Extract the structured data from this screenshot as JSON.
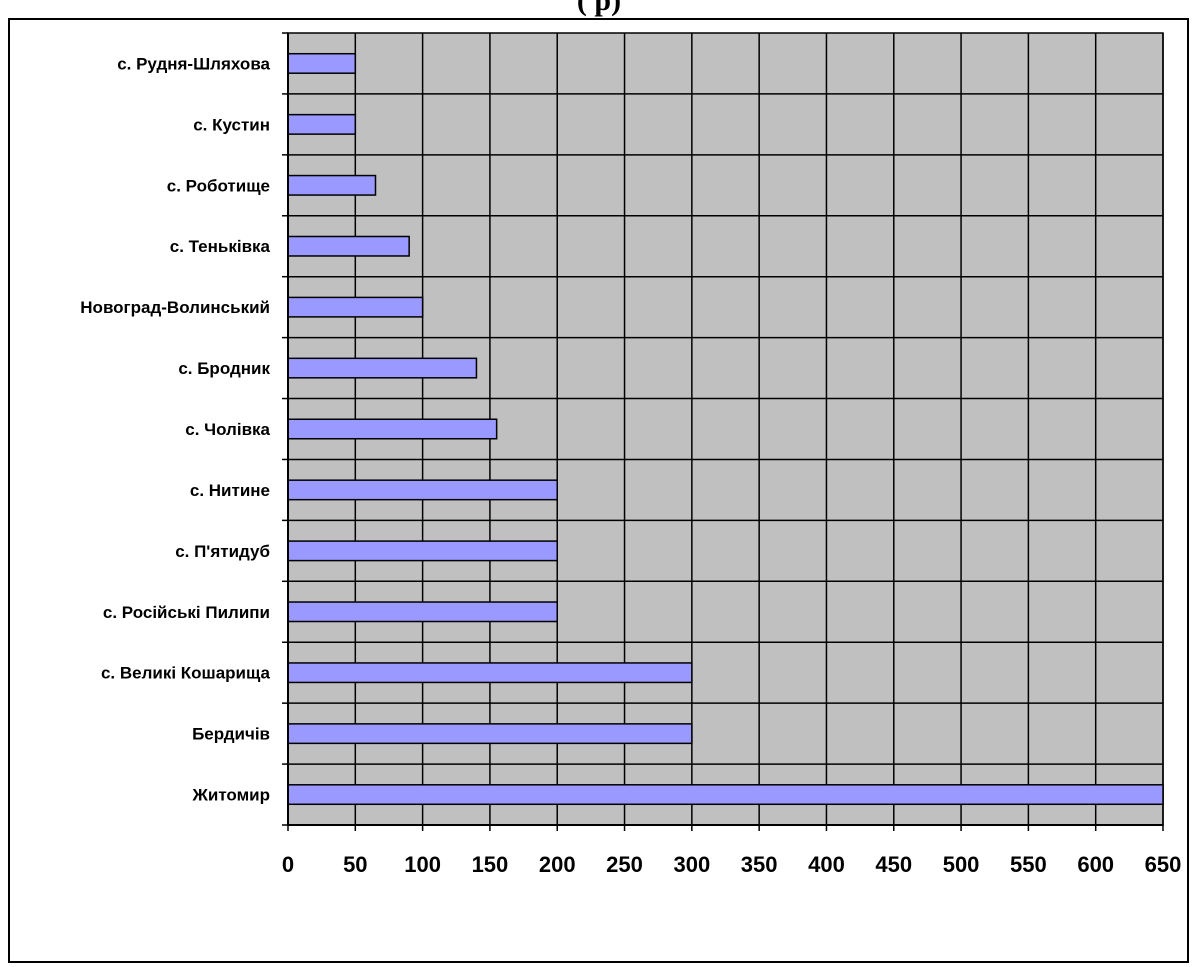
{
  "chart_data": {
    "type": "bar",
    "orientation": "horizontal",
    "title": "(                              р)",
    "categories": [
      "с. Рудня-Шляхова",
      "с. Кустин",
      "с. Роботище",
      "с. Теньківка",
      "Новоград-Волинський",
      "с. Бродник",
      "с. Чолівка",
      "с. Нитине",
      "с. П'ятидуб",
      "с. Російські Пилипи",
      "с. Великі Кошарища",
      "Бердичів",
      "Житомир"
    ],
    "values": [
      50,
      50,
      65,
      90,
      100,
      140,
      155,
      200,
      200,
      200,
      300,
      300,
      650
    ],
    "xlim": [
      0,
      650
    ],
    "xticks": [
      "0",
      "50",
      "100",
      "150",
      "200",
      "250",
      "300",
      "350",
      "400",
      "450",
      "500",
      "550",
      "600",
      "650"
    ],
    "grid": true,
    "legend": "none",
    "colors": {
      "bar_fill": "#9999ff",
      "plot_background": "#c0c0c0",
      "grid": "#000000"
    }
  }
}
